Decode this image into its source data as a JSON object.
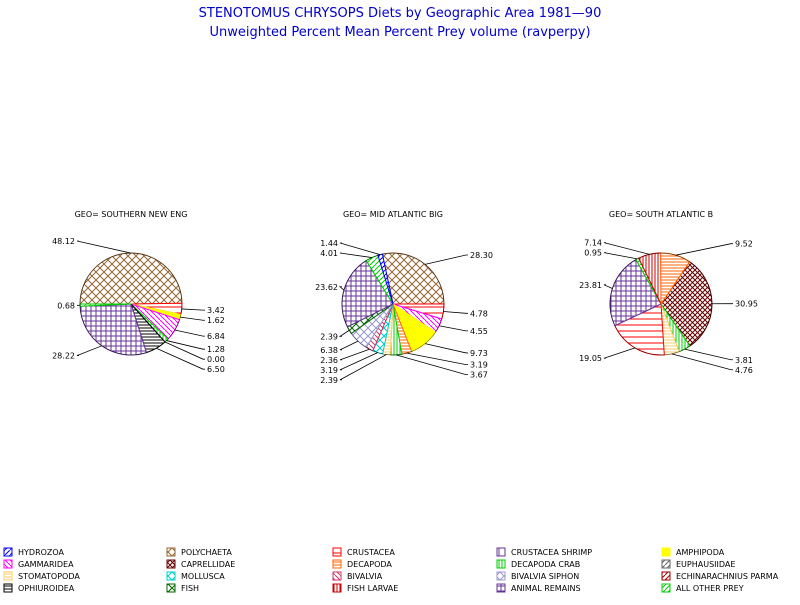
{
  "title": "STENOTOMUS CHRYSOPS Diets by Geographic Area 1981—90",
  "subtitle": "Unweighted Percent Mean Percent Prey  volume (ravperpy)",
  "categories": [
    {
      "key": "hydrozoa",
      "name": "HYDROZOA",
      "color": "#0000ff",
      "pattern": "diag-right"
    },
    {
      "key": "polychaeta",
      "name": "POLYCHAETA",
      "color": "#996633",
      "pattern": "cross-diag"
    },
    {
      "key": "crustacea",
      "name": "CRUSTACEA",
      "color": "#ff0000",
      "pattern": "horiz-wide"
    },
    {
      "key": "crustacea_shrimp",
      "name": "CRUSTACEA SHRIMP",
      "color": "#663399",
      "pattern": "vert-wide"
    },
    {
      "key": "amphipoda",
      "name": "AMPHIPODA",
      "color": "#ffff00",
      "pattern": "solid"
    },
    {
      "key": "gammaridea",
      "name": "GAMMARIDEA",
      "color": "#ff00ff",
      "pattern": "diag-left"
    },
    {
      "key": "caprellidae",
      "name": "CAPRELLIDAE",
      "color": "#660000",
      "pattern": "cross-diag-dense"
    },
    {
      "key": "decapoda",
      "name": "DECAPODA",
      "color": "#ff6600",
      "pattern": "horiz"
    },
    {
      "key": "decapoda_crab",
      "name": "DECAPODA CRAB",
      "color": "#00cc00",
      "pattern": "vert"
    },
    {
      "key": "euphausiidae",
      "name": "EUPHAUSIIDAE",
      "color": "#666666",
      "pattern": "diag-right"
    },
    {
      "key": "stomatopoda",
      "name": "STOMATOPODA",
      "color": "#ffcc66",
      "pattern": "horiz"
    },
    {
      "key": "mollusca",
      "name": "MOLLUSCA",
      "color": "#00cccc",
      "pattern": "cross-diag"
    },
    {
      "key": "bivalvia",
      "name": "BIVALVIA",
      "color": "#cc3366",
      "pattern": "diag-left"
    },
    {
      "key": "bivalvia_siphon",
      "name": "BIVALVIA SIPHON",
      "color": "#9999cc",
      "pattern": "cross-diag"
    },
    {
      "key": "echinarachnius_parma",
      "name": "ECHINARACHNIUS PARMA",
      "color": "#990000",
      "pattern": "diag-right"
    },
    {
      "key": "ophiuroidea",
      "name": "OPHIUROIDEA",
      "color": "#000000",
      "pattern": "horiz"
    },
    {
      "key": "fish",
      "name": "FISH",
      "color": "#006600",
      "pattern": "cross-diag"
    },
    {
      "key": "fish_larvae",
      "name": "FISH LARVAE",
      "color": "#cc0000",
      "pattern": "vert"
    },
    {
      "key": "animal_remains",
      "name": "ANIMAL REMAINS",
      "color": "#663399",
      "pattern": "grid"
    },
    {
      "key": "all_other_prey",
      "name": "ALL OTHER PREY",
      "color": "#00cc00",
      "pattern": "diag-right"
    }
  ],
  "chart_data": [
    {
      "type": "pie",
      "title": "GEO= SOUTHERN NEW ENG",
      "slices": [
        {
          "category": "polychaeta",
          "value": 48.12,
          "label": "48.12"
        },
        {
          "category": "crustacea",
          "value": 3.42,
          "label": "3.42"
        },
        {
          "category": "amphipoda",
          "value": 1.62,
          "label": "1.62"
        },
        {
          "category": "gammaridea",
          "value": 6.84,
          "label": "6.84"
        },
        {
          "category": "decapoda_crab",
          "value": 1.28,
          "label": "1.28"
        },
        {
          "category": "euphausiidae",
          "value": 0.0,
          "label": "0.00"
        },
        {
          "category": "ophiuroidea",
          "value": 6.5,
          "label": "6.50"
        },
        {
          "category": "animal_remains",
          "value": 28.22,
          "label": "28.22"
        },
        {
          "category": "all_other_prey",
          "value": 0.68,
          "label": "0.68"
        }
      ]
    },
    {
      "type": "pie",
      "title": "GEO= MID ATLANTIC BIG",
      "slices": [
        {
          "category": "polychaeta",
          "value": 28.3,
          "label": "28.30"
        },
        {
          "category": "crustacea",
          "value": 4.78,
          "label": "4.78"
        },
        {
          "category": "gammaridea",
          "value": 4.55,
          "label": "4.55"
        },
        {
          "category": "amphipoda",
          "value": 9.73,
          "label": "9.73"
        },
        {
          "category": "decapoda",
          "value": 3.19,
          "label": "3.19"
        },
        {
          "category": "decapoda_crab",
          "value": 3.67,
          "label": "3.67"
        },
        {
          "category": "stomatopoda",
          "value": 2.39,
          "label": "2.39"
        },
        {
          "category": "mollusca",
          "value": 3.19,
          "label": "3.19"
        },
        {
          "category": "bivalvia",
          "value": 2.36,
          "label": "2.36"
        },
        {
          "category": "bivalvia_siphon",
          "value": 6.38,
          "label": "6.38"
        },
        {
          "category": "fish",
          "value": 2.39,
          "label": "2.39"
        },
        {
          "category": "animal_remains",
          "value": 23.62,
          "label": "23.62"
        },
        {
          "category": "all_other_prey",
          "value": 4.01,
          "label": "4.01"
        },
        {
          "category": "hydrozoa",
          "value": 1.44,
          "label": "1.44"
        }
      ]
    },
    {
      "type": "pie",
      "title": "GEO= SOUTH ATLANTIC B",
      "slices": [
        {
          "category": "caprellidae",
          "value": 30.95,
          "label": "30.95"
        },
        {
          "category": "decapoda_crab",
          "value": 3.81,
          "label": "3.81"
        },
        {
          "category": "stomatopoda",
          "value": 4.76,
          "label": "4.76"
        },
        {
          "category": "crustacea",
          "value": 19.05,
          "label": "19.05"
        },
        {
          "category": "animal_remains",
          "value": 23.81,
          "label": "23.81"
        },
        {
          "category": "all_other_prey",
          "value": 0.95,
          "label": "0.95"
        },
        {
          "category": "fish_larvae",
          "value": 7.14,
          "label": "7.14"
        },
        {
          "category": "decapoda",
          "value": 9.52,
          "label": "9.52"
        }
      ]
    }
  ]
}
